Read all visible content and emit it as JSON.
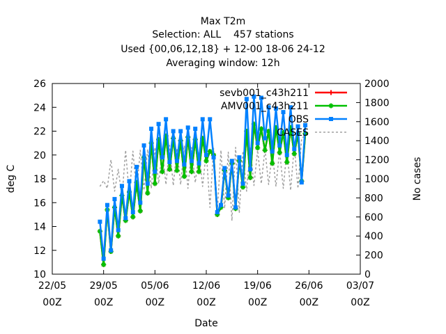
{
  "chart_data": {
    "type": "line",
    "title_lines": [
      "Max T2m",
      "Selection: ALL    457 stations",
      "Used {00,06,12,18} + 12-00 18-06 24-12",
      "Averaging window: 12h"
    ],
    "xlabel": "Date",
    "ylabel": "deg C",
    "y2label": "No cases",
    "x_unit": "days since 22/05 00Z",
    "xlim": [
      0,
      42
    ],
    "ylim": [
      10,
      26
    ],
    "y2lim": [
      0,
      2000
    ],
    "x_ticks": [
      {
        "pos": 0,
        "line1": "22/05",
        "line2": "00Z"
      },
      {
        "pos": 7,
        "line1": "29/05",
        "line2": "00Z"
      },
      {
        "pos": 14,
        "line1": "05/06",
        "line2": "00Z"
      },
      {
        "pos": 21,
        "line1": "12/06",
        "line2": "00Z"
      },
      {
        "pos": 28,
        "line1": "19/06",
        "line2": "00Z"
      },
      {
        "pos": 35,
        "line1": "26/06",
        "line2": "00Z"
      },
      {
        "pos": 42,
        "line1": "03/07",
        "line2": "00Z"
      }
    ],
    "y_ticks": [
      "10",
      "12",
      "14",
      "16",
      "18",
      "20",
      "22",
      "24",
      "26"
    ],
    "y2_ticks": [
      "0",
      "200",
      "400",
      "600",
      "800",
      "1000",
      "1200",
      "1400",
      "1600",
      "1800",
      "2000"
    ],
    "grid": false,
    "legend_position": "top-right",
    "x_start": 6.5,
    "x_step": 0.5,
    "series": [
      {
        "name": "sevb001_c43h211",
        "color": "#ff0000",
        "marker": "plus",
        "on_axis": "y",
        "values": [
          13.6,
          10.8,
          15.4,
          11.9,
          15.6,
          13.2,
          16.6,
          14.5,
          16.9,
          14.8,
          17.7,
          15.3,
          19.8,
          16.8,
          21.0,
          17.6,
          21.3,
          18.6,
          21.6,
          18.8,
          21.4,
          18.7,
          21.2,
          18.2,
          21.5,
          18.6,
          21.3,
          18.6,
          21.4,
          19.5,
          20.3,
          20.0,
          15.0,
          15.6,
          18.7,
          16.4,
          19.3,
          15.5,
          19.5,
          17.3,
          22.0,
          18.1,
          22.6,
          20.6,
          22.2,
          20.4,
          22.0,
          19.3,
          22.3,
          20.2,
          21.9,
          19.4,
          22.3,
          20.1,
          21.8,
          17.8,
          21.8
        ]
      },
      {
        "name": "AMV001_c43h211",
        "color": "#00c000",
        "marker": "star",
        "on_axis": "y",
        "values": [
          13.6,
          10.8,
          15.4,
          11.9,
          15.6,
          13.2,
          16.6,
          14.5,
          16.9,
          14.8,
          17.7,
          15.3,
          19.8,
          16.8,
          21.0,
          17.6,
          21.3,
          18.6,
          21.6,
          18.8,
          21.4,
          18.7,
          21.2,
          18.2,
          21.5,
          18.6,
          21.3,
          18.6,
          21.4,
          19.5,
          20.3,
          20.0,
          15.0,
          15.6,
          18.7,
          16.4,
          19.3,
          15.5,
          19.5,
          17.3,
          22.0,
          18.1,
          22.6,
          20.6,
          22.2,
          20.4,
          22.0,
          19.3,
          22.3,
          20.2,
          21.9,
          19.4,
          22.3,
          20.1,
          21.8,
          17.8,
          21.8
        ]
      },
      {
        "name": "OBS",
        "color": "#0080ff",
        "marker": "square",
        "on_axis": "y",
        "values": [
          14.4,
          11.3,
          15.8,
          12.0,
          16.3,
          13.7,
          17.4,
          14.7,
          17.8,
          15.2,
          19.0,
          16.0,
          20.8,
          17.6,
          22.2,
          18.6,
          22.6,
          19.8,
          23.0,
          19.4,
          22.0,
          19.5,
          22.0,
          19.2,
          22.3,
          19.5,
          22.2,
          19.3,
          23.0,
          20.0,
          23.0,
          19.8,
          15.2,
          15.8,
          18.9,
          16.6,
          19.5,
          15.6,
          19.8,
          17.6,
          24.7,
          18.8,
          24.9,
          21.0,
          24.8,
          21.4,
          24.0,
          20.3,
          23.9,
          20.8,
          23.6,
          20.0,
          24.0,
          20.5,
          22.4,
          17.7,
          22.5
        ]
      },
      {
        "name": "CASES",
        "color": "#a0a0a0",
        "marker": "none",
        "dashed": true,
        "on_axis": "y2",
        "values": [
          920,
          980,
          900,
          1200,
          870,
          1100,
          800,
          1300,
          830,
          1290,
          860,
          1300,
          880,
          1310,
          900,
          1330,
          950,
          1300,
          940,
          1350,
          930,
          1320,
          940,
          1350,
          900,
          1330,
          960,
          1280,
          920,
          1290,
          700,
          1320,
          650,
          1300,
          690,
          1280,
          560,
          1330,
          640,
          1290,
          870,
          1330,
          930,
          1300,
          950,
          1310,
          940,
          1280,
          920,
          1300,
          900,
          1310,
          880,
          1350,
          900,
          1420,
          1460
        ]
      }
    ]
  }
}
